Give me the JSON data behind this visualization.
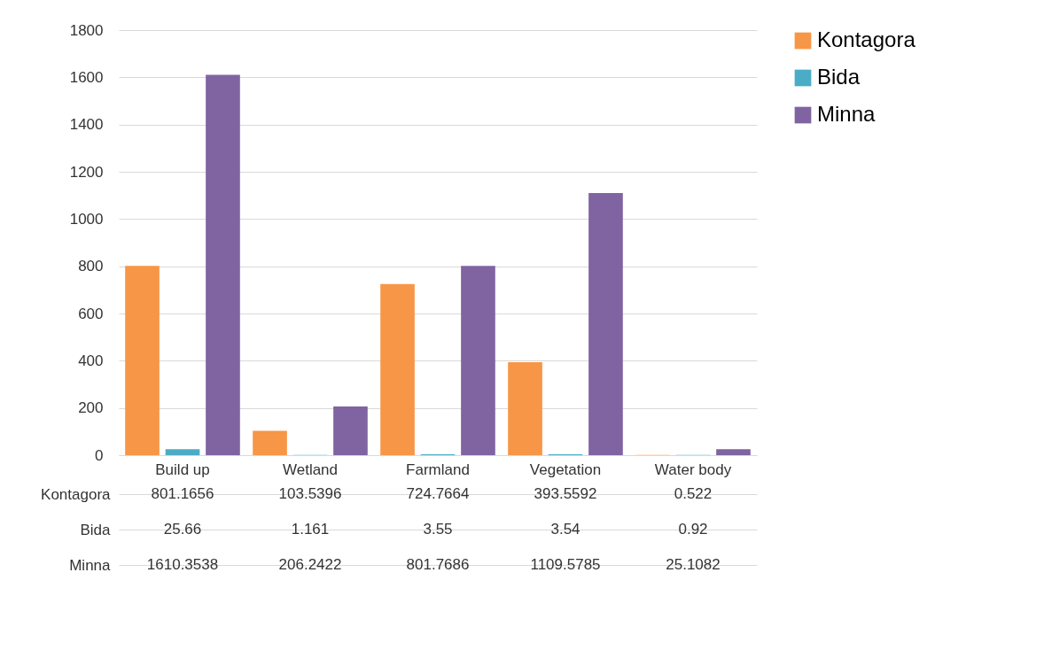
{
  "chart_data": {
    "type": "bar",
    "categories": [
      "Build up",
      "Wetland",
      "Farmland",
      "Vegetation",
      "Water body"
    ],
    "series": [
      {
        "name": "Kontagora",
        "color": "#f79646",
        "values": [
          801.1656,
          103.5396,
          724.7664,
          393.5592,
          0.522
        ]
      },
      {
        "name": "Bida",
        "color": "#4bacc6",
        "values": [
          25.66,
          1.161,
          3.55,
          3.54,
          0.92
        ]
      },
      {
        "name": "Minna",
        "color": "#8064a2",
        "values": [
          1610.3538,
          206.2422,
          801.7686,
          1109.5785,
          25.1082
        ]
      }
    ],
    "ylim": [
      0,
      1800
    ],
    "yticks": [
      0,
      200,
      400,
      600,
      800,
      1000,
      1200,
      1400,
      1600,
      1800
    ],
    "grid": "y",
    "legend": "right",
    "data_labels": true
  }
}
